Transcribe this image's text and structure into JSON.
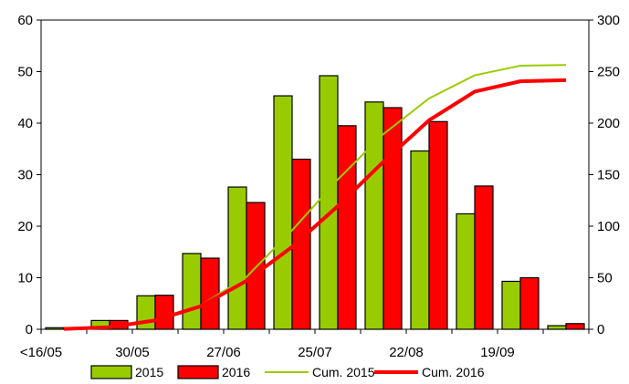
{
  "chart_data": {
    "type": "bar",
    "categories": [
      "<16/05",
      "",
      "30/05",
      "",
      "27/06",
      "",
      "25/07",
      "",
      "22/08",
      "",
      "19/09",
      ""
    ],
    "series": [
      {
        "name": "2015",
        "type": "bar",
        "axis": "left",
        "color": "#99cc00",
        "values": [
          0.3,
          1.7,
          6.5,
          14.7,
          27.6,
          45.3,
          49.2,
          44.1,
          34.6,
          22.4,
          9.3,
          0.7
        ]
      },
      {
        "name": "2016",
        "type": "bar",
        "axis": "left",
        "color": "#ff0000",
        "values": [
          0.3,
          1.7,
          6.6,
          13.8,
          24.6,
          33.0,
          39.5,
          43.0,
          40.3,
          27.8,
          10.0,
          1.1
        ]
      },
      {
        "name": "Cum. 2015",
        "type": "line",
        "axis": "right",
        "color": "#99cc00",
        "values": [
          0.3,
          2.0,
          8.5,
          23.2,
          50.8,
          96.1,
          145.3,
          189.4,
          224.0,
          246.4,
          255.7,
          256.4
        ]
      },
      {
        "name": "Cum. 2016",
        "type": "line",
        "axis": "right",
        "color": "#ff0000",
        "values": [
          0.3,
          2.0,
          8.6,
          22.4,
          47.0,
          80.0,
          119.5,
          162.5,
          202.8,
          230.6,
          240.6,
          241.7
        ]
      }
    ],
    "y_left": {
      "ylim": [
        0,
        60
      ],
      "ticks": [
        "0",
        "10",
        "20",
        "30",
        "40",
        "50",
        "60"
      ]
    },
    "y_right": {
      "ylim": [
        0,
        300
      ],
      "ticks": [
        "0",
        "50",
        "100",
        "150",
        "200",
        "250",
        "300"
      ]
    },
    "grid": false,
    "legend": {
      "position": "bottom",
      "entries": [
        {
          "label": "2015",
          "kind": "box",
          "color": "#99cc00"
        },
        {
          "label": "2016",
          "kind": "box",
          "color": "#ff0000"
        },
        {
          "label": "Cum. 2015",
          "kind": "line",
          "color": "#99cc00"
        },
        {
          "label": "Cum. 2016",
          "kind": "line",
          "color": "#ff0000"
        }
      ]
    }
  }
}
